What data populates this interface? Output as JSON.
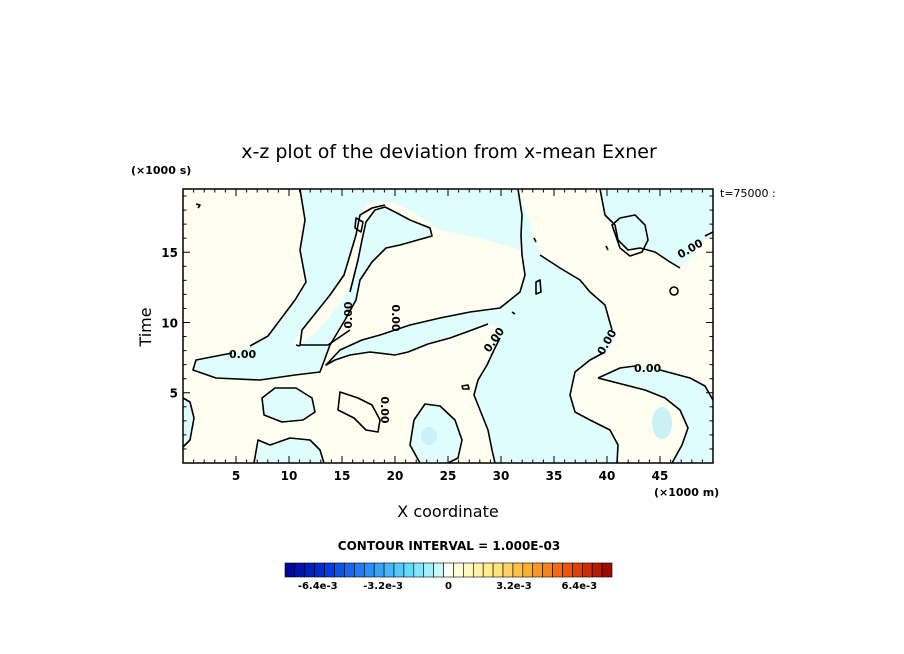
{
  "chart_data": {
    "type": "contour",
    "title": "x-z plot of the deviation from x-mean Exner",
    "xlabel": "X coordinate",
    "ylabel": "Time",
    "x_unit": "(×1000 m)",
    "y_unit": "(×1000 s)",
    "time_label": "t=75000 :",
    "xlim": [
      0,
      50
    ],
    "ylim": [
      0,
      19.5
    ],
    "x_ticks": [
      5,
      10,
      15,
      20,
      25,
      30,
      35,
      40,
      45
    ],
    "y_ticks": [
      5,
      10,
      15
    ],
    "contour_interval_label": "CONTOUR INTERVAL = 1.000E-03",
    "contour_labels": [
      "0.00"
    ],
    "colorbar": {
      "min": -0.008,
      "max": 0.008,
      "n_levels": 33,
      "tick_labels": [
        "-6.4e-3",
        "-3.2e-3",
        "0",
        "3.2e-3",
        "6.4e-3"
      ],
      "tick_values": [
        -0.0064,
        -0.0032,
        0,
        0.0032,
        0.0064
      ]
    },
    "colors": {
      "negative_fill": "#dffdfd",
      "positive_fill": "#fefdf0",
      "weak_negative": "#c9f1f6"
    }
  }
}
